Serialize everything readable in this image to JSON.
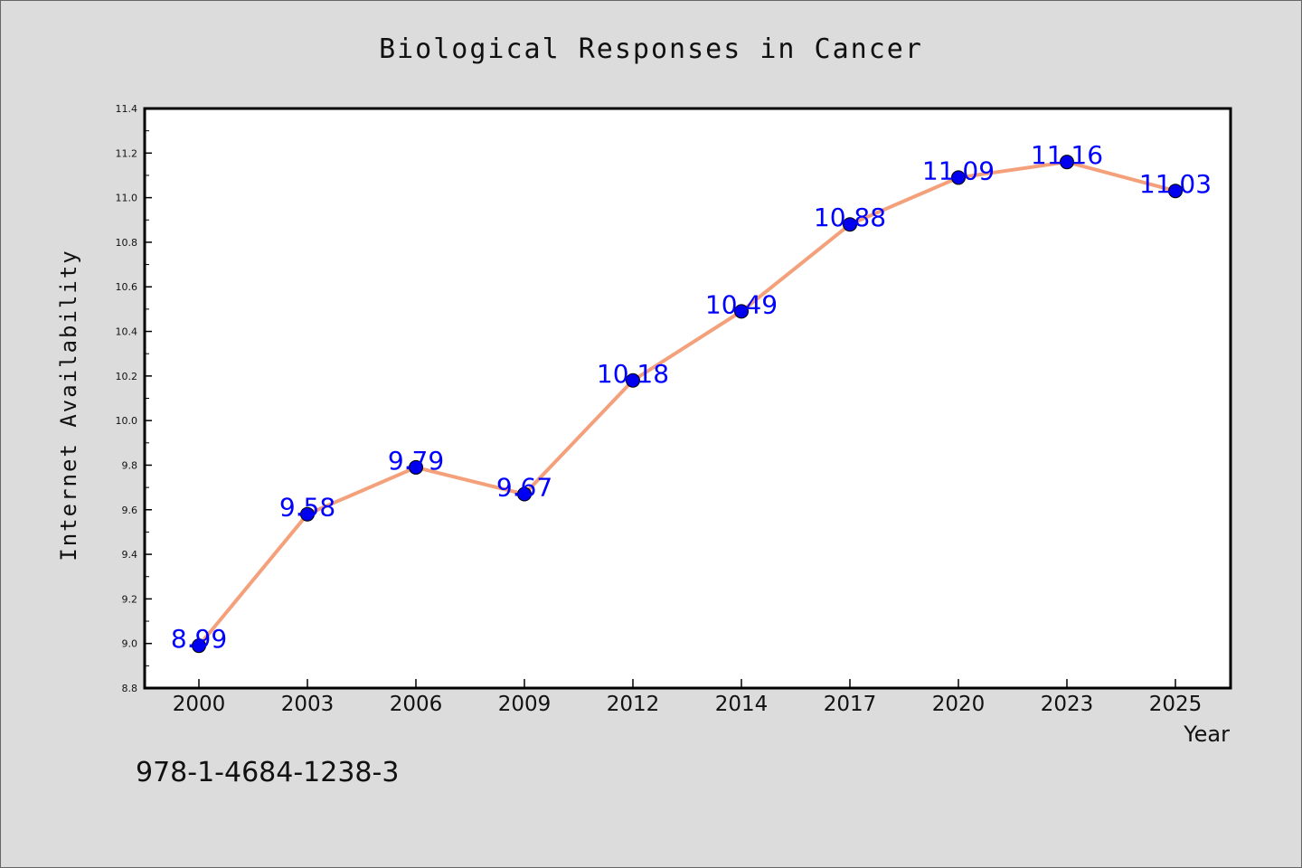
{
  "chart_data": {
    "type": "line",
    "title": "Biological Responses in Cancer",
    "xlabel": "Year",
    "ylabel": "Internet Availability",
    "categories": [
      "2000",
      "2003",
      "2006",
      "2009",
      "2012",
      "2014",
      "2017",
      "2020",
      "2023",
      "2025"
    ],
    "series": [
      {
        "values": [
          8.99,
          9.58,
          9.79,
          9.67,
          10.18,
          10.49,
          10.88,
          11.09,
          11.16,
          11.03
        ]
      }
    ],
    "data_labels": [
      "8.99",
      "9.58",
      "9.79",
      "9.67",
      "10.18",
      "10.49",
      "10.88",
      "11.09",
      "11.16",
      "11.03"
    ],
    "ylim": [
      8.8,
      11.4
    ],
    "yticks": [
      "8.8",
      "9.0",
      "9.2",
      "9.4",
      "9.6",
      "9.8",
      "10.0",
      "10.2",
      "10.4",
      "10.6",
      "10.8",
      "11.0",
      "11.2",
      "11.4"
    ],
    "grid": false,
    "legend": "none",
    "colors": {
      "line": "#f4a07a",
      "marker": "#0000ee",
      "label": "#0000ff",
      "background": "#dcdcdc",
      "plot": "#ffffff"
    }
  },
  "annotation": "978-1-4684-1238-3"
}
